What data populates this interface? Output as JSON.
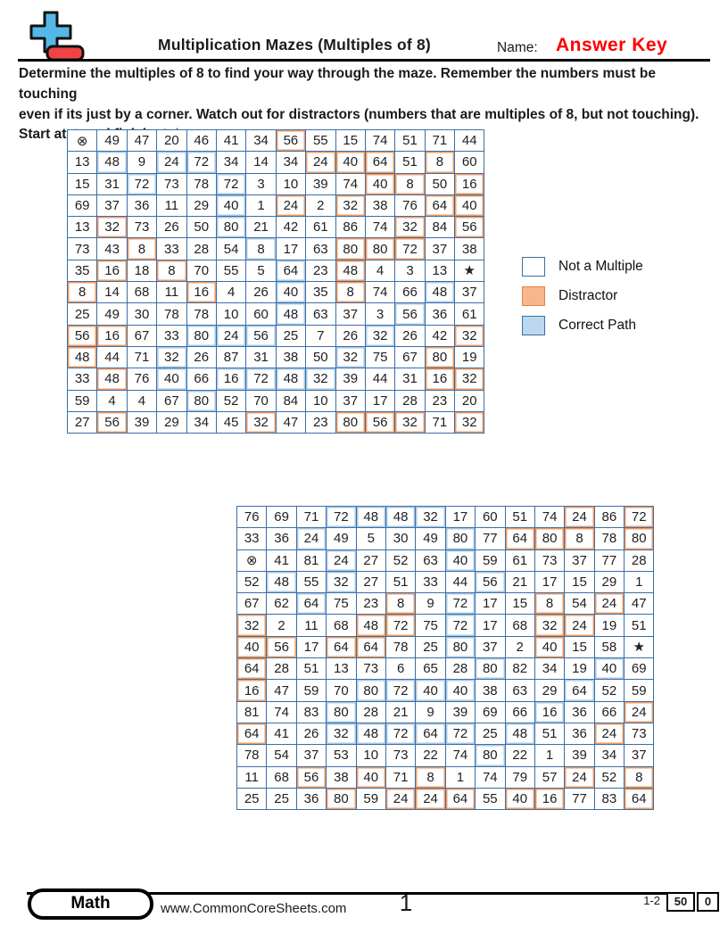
{
  "header": {
    "title": "Multiplication Mazes (Multiples of 8)",
    "name_label": "Name:",
    "name_value": "Answer Key",
    "name_value_color": "#fe0000",
    "logo_icon": "plus-minus-logo",
    "logo_colors": {
      "plus": "#54b9e9",
      "minus": "#f04444",
      "outline": "#111111"
    }
  },
  "instructions": {
    "line1": "Determine the multiples of 8 to find your way through the maze. Remember the numbers must be touching",
    "line2": "even if its just by a corner. Watch out for distractors (numbers that are multiples of 8, but not touching).",
    "line3": "Start at ⊗ and finish at ★."
  },
  "legend": {
    "items": [
      {
        "label": "Not a Multiple",
        "type": "not-multiple",
        "color": "#ffffff"
      },
      {
        "label": "Distractor",
        "type": "distractor",
        "color": "#f8b68e"
      },
      {
        "label": "Correct Path",
        "type": "path",
        "color": "#bdd7ee"
      }
    ]
  },
  "maze_colors": {
    "grid_line": "#3b6ea5",
    "start_fill": "#a9e884",
    "finish_fill": "#f98e8e",
    "start_symbol": "⊗",
    "finish_symbol": "★"
  },
  "mazes": [
    {
      "rows": [
        [
          "⊗|s",
          "49|n",
          "47|n",
          "20|n",
          "46|n",
          "41|n",
          "34|n",
          "56|d",
          "55|n",
          "15|n",
          "74|n",
          "51|n",
          "71|n",
          "44|n"
        ],
        [
          "13|n",
          "48|p",
          "9|n",
          "24|p",
          "72|p",
          "34|n",
          "14|n",
          "34|n",
          "24|d",
          "40|d",
          "64|d",
          "51|n",
          "8|d",
          "60|n"
        ],
        [
          "15|n",
          "31|n",
          "72|p",
          "73|n",
          "78|n",
          "72|p",
          "3|n",
          "10|n",
          "39|n",
          "74|n",
          "40|d",
          "8|d",
          "50|n",
          "16|d"
        ],
        [
          "69|n",
          "37|n",
          "36|n",
          "11|n",
          "29|n",
          "40|p",
          "1|n",
          "24|d",
          "2|n",
          "32|d",
          "38|n",
          "76|n",
          "64|d",
          "40|d"
        ],
        [
          "13|n",
          "32|d",
          "73|n",
          "26|n",
          "50|n",
          "80|p",
          "21|n",
          "42|n",
          "61|n",
          "86|n",
          "74|n",
          "32|d",
          "84|n",
          "56|d"
        ],
        [
          "73|n",
          "43|n",
          "8|d",
          "33|n",
          "28|n",
          "54|n",
          "8|p",
          "17|n",
          "63|n",
          "80|d",
          "80|d",
          "72|d",
          "37|n",
          "38|n"
        ],
        [
          "35|n",
          "16|d",
          "18|n",
          "8|d",
          "70|n",
          "55|n",
          "5|n",
          "64|p",
          "23|n",
          "48|d",
          "4|n",
          "3|n",
          "13|n",
          "★|f"
        ],
        [
          "8|d",
          "14|n",
          "68|n",
          "11|n",
          "16|d",
          "4|n",
          "26|n",
          "40|p",
          "35|n",
          "8|d",
          "74|n",
          "66|n",
          "48|p",
          "37|n"
        ],
        [
          "25|n",
          "49|n",
          "30|n",
          "78|n",
          "78|n",
          "10|n",
          "60|n",
          "48|p",
          "63|n",
          "37|n",
          "3|n",
          "56|p",
          "36|n",
          "61|n"
        ],
        [
          "56|d",
          "16|d",
          "67|n",
          "33|n",
          "80|p",
          "24|p",
          "56|p",
          "25|n",
          "7|n",
          "26|n",
          "32|p",
          "26|n",
          "42|n",
          "32|d"
        ],
        [
          "48|d",
          "44|n",
          "71|n",
          "32|p",
          "26|n",
          "87|n",
          "31|n",
          "38|n",
          "50|n",
          "32|p",
          "75|n",
          "67|n",
          "80|d",
          "19|n"
        ],
        [
          "33|n",
          "48|d",
          "76|n",
          "40|p",
          "66|n",
          "16|p",
          "72|p",
          "48|p",
          "32|p",
          "39|n",
          "44|n",
          "31|n",
          "16|d",
          "32|d"
        ],
        [
          "59|n",
          "4|n",
          "4|n",
          "67|n",
          "80|p",
          "52|n",
          "70|n",
          "84|n",
          "10|n",
          "37|n",
          "17|n",
          "28|n",
          "23|n",
          "20|n"
        ],
        [
          "27|n",
          "56|d",
          "39|n",
          "29|n",
          "34|n",
          "45|n",
          "32|d",
          "47|n",
          "23|n",
          "80|d",
          "56|d",
          "32|d",
          "71|n",
          "32|d"
        ]
      ]
    },
    {
      "rows": [
        [
          "76|n",
          "69|n",
          "71|n",
          "72|p",
          "48|p",
          "48|p",
          "32|p",
          "17|n",
          "60|n",
          "51|n",
          "74|n",
          "24|d",
          "86|n",
          "72|d"
        ],
        [
          "33|n",
          "36|n",
          "24|p",
          "49|n",
          "5|n",
          "30|n",
          "49|n",
          "80|p",
          "77|n",
          "64|d",
          "80|d",
          "8|d",
          "78|n",
          "80|d"
        ],
        [
          "⊗|s",
          "41|n",
          "81|n",
          "24|p",
          "27|n",
          "52|n",
          "63|n",
          "40|p",
          "59|n",
          "61|n",
          "73|n",
          "37|n",
          "77|n",
          "28|n"
        ],
        [
          "52|n",
          "48|p",
          "55|n",
          "32|p",
          "27|n",
          "51|n",
          "33|n",
          "44|n",
          "56|p",
          "21|n",
          "17|n",
          "15|n",
          "29|n",
          "1|n"
        ],
        [
          "67|n",
          "62|n",
          "64|p",
          "75|n",
          "23|n",
          "8|d",
          "9|n",
          "72|p",
          "17|n",
          "15|n",
          "8|d",
          "54|n",
          "24|d",
          "47|n"
        ],
        [
          "32|d",
          "2|n",
          "11|n",
          "68|n",
          "48|d",
          "72|d",
          "75|n",
          "72|p",
          "17|n",
          "68|n",
          "32|d",
          "24|d",
          "19|n",
          "51|n"
        ],
        [
          "40|d",
          "56|d",
          "17|n",
          "64|d",
          "64|d",
          "78|n",
          "25|n",
          "80|p",
          "37|n",
          "2|n",
          "40|d",
          "15|n",
          "58|n",
          "★|f"
        ],
        [
          "64|d",
          "28|n",
          "51|n",
          "13|n",
          "73|n",
          "6|n",
          "65|n",
          "28|n",
          "80|p",
          "82|n",
          "34|n",
          "19|n",
          "40|p",
          "69|n"
        ],
        [
          "16|d",
          "47|n",
          "59|n",
          "70|n",
          "80|p",
          "72|p",
          "40|p",
          "40|p",
          "38|n",
          "63|n",
          "29|n",
          "64|p",
          "52|n",
          "59|n"
        ],
        [
          "81|n",
          "74|n",
          "83|n",
          "80|p",
          "28|n",
          "21|n",
          "9|n",
          "39|n",
          "69|n",
          "66|n",
          "16|p",
          "36|n",
          "66|n",
          "24|d"
        ],
        [
          "64|d",
          "41|n",
          "26|n",
          "32|p",
          "48|p",
          "72|p",
          "64|p",
          "72|p",
          "25|n",
          "48|p",
          "51|n",
          "36|n",
          "24|d",
          "73|n"
        ],
        [
          "78|n",
          "54|n",
          "37|n",
          "53|n",
          "10|n",
          "73|n",
          "22|n",
          "74|n",
          "80|p",
          "22|n",
          "1|n",
          "39|n",
          "34|n",
          "37|n"
        ],
        [
          "11|n",
          "68|n",
          "56|d",
          "38|n",
          "40|d",
          "71|n",
          "8|d",
          "1|n",
          "74|n",
          "79|n",
          "57|n",
          "24|d",
          "52|n",
          "8|d"
        ],
        [
          "25|n",
          "25|n",
          "36|n",
          "80|d",
          "59|n",
          "24|d",
          "24|d",
          "64|d",
          "55|n",
          "40|d",
          "16|d",
          "77|n",
          "83|n",
          "64|d"
        ]
      ]
    }
  ],
  "footer": {
    "subject": "Math",
    "url": "www.CommonCoreSheets.com",
    "page_number": "1",
    "range_label": "1-2",
    "score_left": "50",
    "score_right": "0"
  }
}
